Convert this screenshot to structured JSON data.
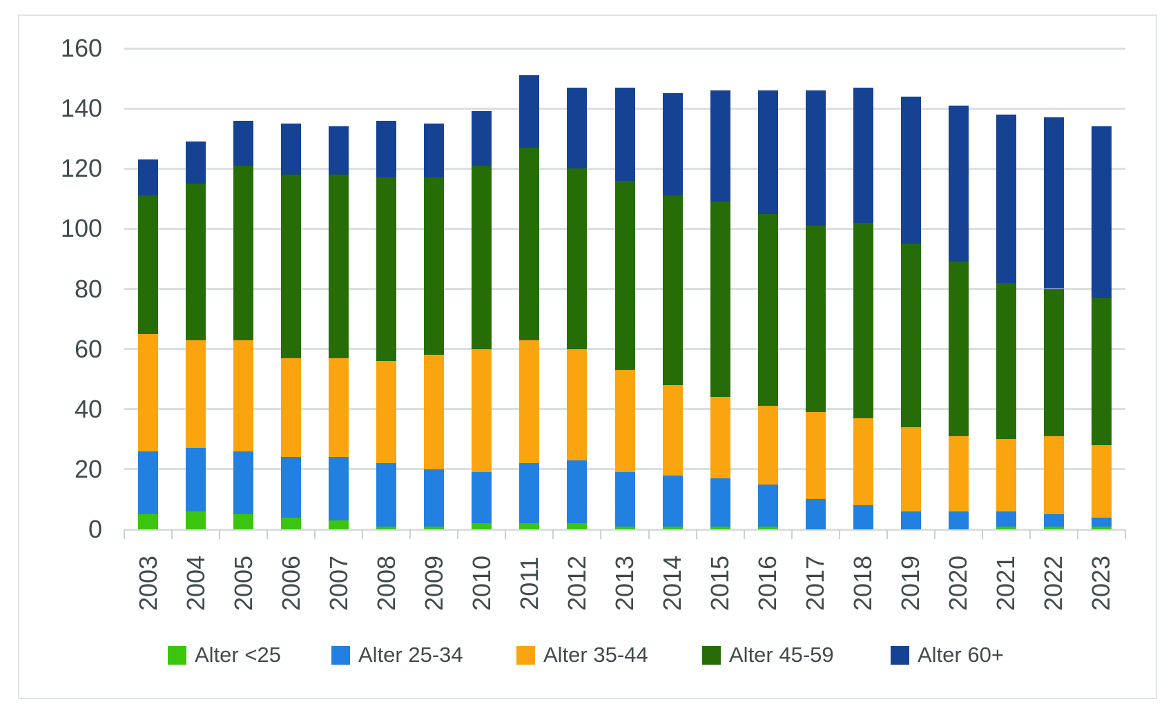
{
  "chart_data": {
    "type": "bar",
    "stacked": true,
    "title": "",
    "xlabel": "",
    "ylabel": "",
    "grid": true,
    "legend_position": "bottom",
    "ylim": [
      0,
      160
    ],
    "y_ticks": [
      0,
      20,
      40,
      60,
      80,
      100,
      120,
      140,
      160
    ],
    "categories": [
      "2003",
      "2004",
      "2005",
      "2006",
      "2007",
      "2008",
      "2009",
      "2010",
      "2011",
      "2012",
      "2013",
      "2014",
      "2015",
      "2016",
      "2017",
      "2018",
      "2019",
      "2020",
      "2021",
      "2022",
      "2023"
    ],
    "series": [
      {
        "name": "Alter <25",
        "color": "#3cc50d",
        "values": [
          5,
          6,
          5,
          4,
          3,
          1,
          1,
          2,
          2,
          2,
          1,
          1,
          1,
          1,
          0,
          0,
          0,
          0,
          1,
          1,
          1
        ]
      },
      {
        "name": "Alter 25-34",
        "color": "#2280e0",
        "values": [
          21,
          21,
          21,
          20,
          21,
          21,
          19,
          17,
          20,
          21,
          18,
          17,
          16,
          14,
          10,
          8,
          6,
          6,
          5,
          4,
          3
        ]
      },
      {
        "name": "Alter 35-44",
        "color": "#faa50f",
        "values": [
          39,
          36,
          37,
          33,
          33,
          34,
          38,
          41,
          41,
          37,
          34,
          30,
          27,
          26,
          29,
          29,
          28,
          25,
          24,
          26,
          24
        ]
      },
      {
        "name": "Alter 45-59",
        "color": "#266d08",
        "values": [
          46,
          52,
          58,
          61,
          61,
          61,
          59,
          61,
          64,
          60,
          63,
          63,
          65,
          64,
          62,
          65,
          61,
          58,
          52,
          49,
          49
        ]
      },
      {
        "name": "Alter 60+",
        "color": "#164293",
        "values": [
          12,
          14,
          15,
          17,
          16,
          19,
          18,
          18,
          24,
          27,
          31,
          34,
          37,
          41,
          45,
          45,
          49,
          52,
          56,
          57,
          57
        ]
      }
    ],
    "totals": [
      123,
      129,
      136,
      135,
      134,
      136,
      135,
      139,
      151,
      147,
      147,
      145,
      146,
      146,
      146,
      147,
      144,
      141,
      138,
      137,
      134
    ],
    "colors": {
      "gridline": "#dae0e1",
      "axis_text": "#3f4b4e",
      "frame_border": "#dfe5e6",
      "background": "#ffffff"
    }
  }
}
